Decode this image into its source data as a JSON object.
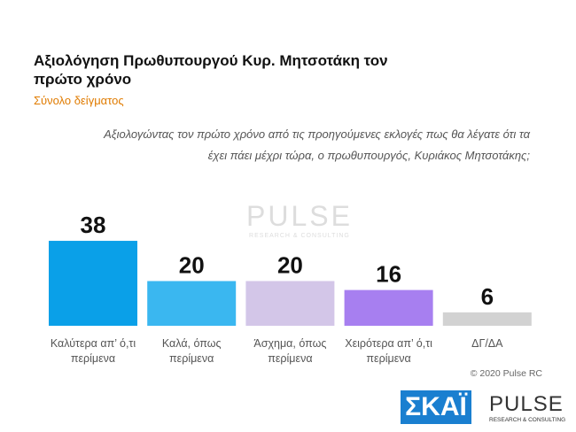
{
  "chart_data": {
    "type": "bar",
    "title": "Αξιολόγηση Πρωθυπουργού Κυρ. Μητσοτάκη τον πρώτο χρόνο",
    "subtitle": "Σύνολο δείγματος",
    "question": "Αξιολογώντας τον πρώτο χρόνο από τις προηγούμενες εκλογές πως θα λέγατε ότι τα έχει πάει μέχρι τώρα, ο πρωθυπουργός, Κυριάκος Μητσοτάκης;",
    "categories": [
      "Καλύτερα απ’ ό,τι περίμενα",
      "Καλά, όπως περίμενα",
      "Άσχημα, όπως περίμενα",
      "Χειρότερα απ’ ό,τι περίμενα",
      "ΔΓ/ΔΑ"
    ],
    "values": [
      38,
      20,
      20,
      16,
      6
    ],
    "colors": [
      "#0aa0e8",
      "#3ab7f0",
      "#d3c6e8",
      "#a77ff0",
      "#d2d2d2"
    ],
    "ylim": [
      0,
      40
    ],
    "copyright": "© 2020 Pulse RC"
  },
  "watermark": {
    "name": "PULSE",
    "tagline": "RESEARCH & CONSULTING"
  },
  "logos": {
    "skai": "ΣΚΑΪ",
    "pulse": "PULSE",
    "pulse_tagline": "RESEARCH & CONSULTING"
  }
}
